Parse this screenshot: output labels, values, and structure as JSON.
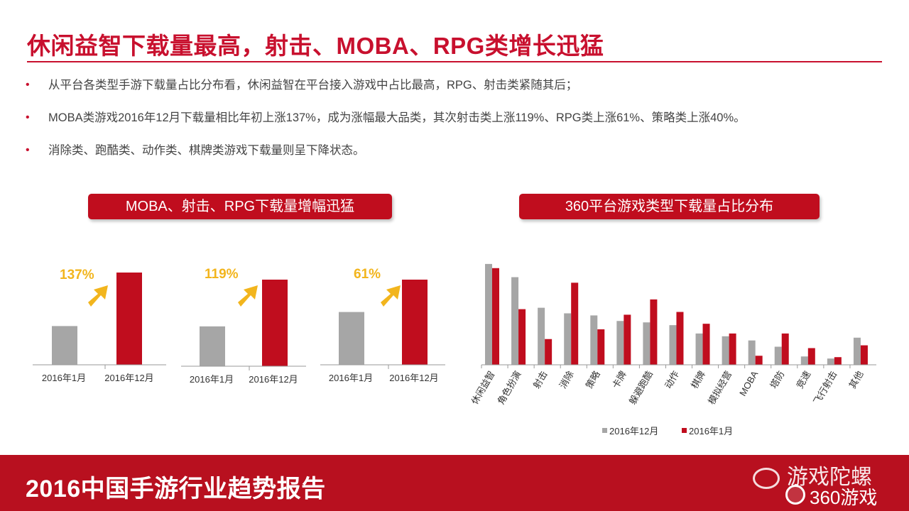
{
  "title": "休闲益智下载量最高，射击、MOBA、RPG类增长迅猛",
  "bullets": [
    "从平台各类型手游下载量占比分布看，休闲益智在平台接入游戏中占比最高，RPG、射击类紧随其后；",
    "MOBA类游戏2016年12月下载量相比年初上涨137%，成为涨幅最大品类，其次射击类上涨119%、RPG类上涨61%、策略类上涨40%。",
    "消除类、跑酷类、动作类、棋牌类游戏下载量则呈下降状态。"
  ],
  "left_panel": {
    "label": "MOBA、射击、RPG下载量增幅迅猛"
  },
  "right_panel": {
    "label": "360平台游戏类型下载量占比分布"
  },
  "footer": {
    "title": "2016中国手游行业趋势报告"
  },
  "watermark": {
    "text": "游戏陀螺",
    "logo_text": "360游戏"
  },
  "colors": {
    "accent": "#c8102e",
    "bar_red": "#c00d1e",
    "bar_gray": "#a6a6a6",
    "arrow": "#f2b51d"
  },
  "chart_data": [
    {
      "type": "bar",
      "categories": [
        "2016年1月",
        "2016年12月"
      ],
      "values": [
        42,
        100
      ],
      "annotation": "137%"
    },
    {
      "type": "bar",
      "categories": [
        "2016年1月",
        "2016年12月"
      ],
      "values": [
        46,
        100
      ],
      "annotation": "119%"
    },
    {
      "type": "bar",
      "categories": [
        "2016年1月",
        "2016年12月"
      ],
      "values": [
        62,
        100
      ],
      "annotation": "61%"
    },
    {
      "type": "bar",
      "categories": [
        "休闲益智",
        "角色扮演",
        "射击",
        "消除",
        "策略",
        "卡牌",
        "躲避跑酷",
        "动作",
        "棋牌",
        "模拟经营",
        "MOBA",
        "塔防",
        "竞速",
        "飞行射击",
        "其他"
      ],
      "series": [
        {
          "name": "2016年12月",
          "values": [
            145,
            126,
            82,
            74,
            71,
            63,
            61,
            57,
            45,
            41,
            35,
            26,
            12,
            9,
            39
          ]
        },
        {
          "name": "2016年1月",
          "values": [
            139,
            80,
            37,
            118,
            51,
            72,
            94,
            76,
            59,
            45,
            13,
            45,
            24,
            11,
            28
          ]
        }
      ],
      "ylim": [
        0,
        150
      ],
      "legend_position": "bottom"
    }
  ]
}
